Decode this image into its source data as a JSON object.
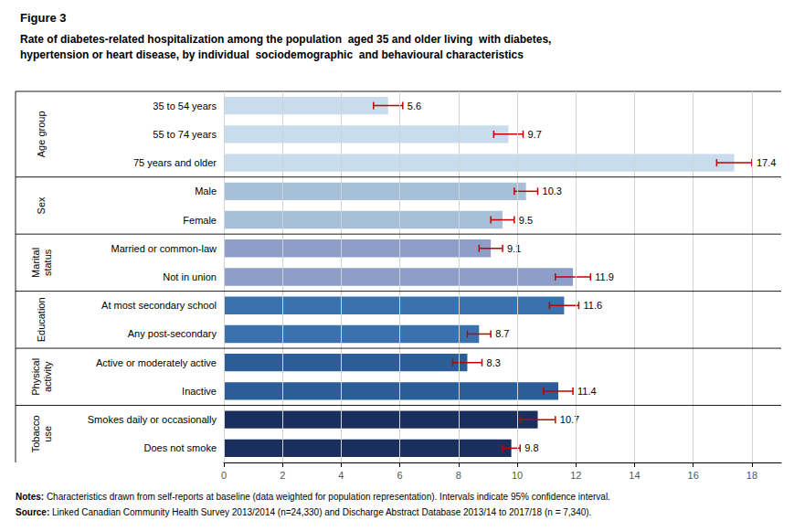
{
  "chart_data": {
    "type": "bar",
    "orientation": "horizontal",
    "title": "Figure 3",
    "subtitle": [
      "Rate of diabetes-related hospitalization among the population  aged 35 and older living  with diabetes,",
      "hypertension or heart disease, by individual  sociodemographic  and behavioural characteristics"
    ],
    "categories": [
      "35 to 54 years",
      "55 to 74 years",
      "75 years and older",
      "Male",
      "Female",
      "Married or common-law",
      "Not in union",
      "At most secondary school",
      "Any post-secondary",
      "Active or moderately active",
      "Inactive",
      "Smokes daily or occasionally",
      "Does not smoke"
    ],
    "values": [
      5.6,
      9.7,
      17.4,
      10.3,
      9.5,
      9.1,
      11.9,
      11.6,
      8.7,
      8.3,
      11.4,
      10.7,
      9.8
    ],
    "ci_lower": [
      0.5,
      0.5,
      0.6,
      0.4,
      0.4,
      0.4,
      0.6,
      0.5,
      0.4,
      0.5,
      0.5,
      0.6,
      0.3
    ],
    "ci_upper": [
      0.5,
      0.5,
      0.6,
      0.4,
      0.4,
      0.4,
      0.6,
      0.5,
      0.4,
      0.5,
      0.5,
      0.6,
      0.3
    ],
    "colors": [
      "#c9dced",
      "#c9dced",
      "#c9dced",
      "#a8bfda",
      "#a8bfda",
      "#8d9fc8",
      "#8d9fc8",
      "#3a72ae",
      "#3a72ae",
      "#2b5d99",
      "#2b5d99",
      "#1b2f5e",
      "#1b2f5e"
    ],
    "groups": [
      {
        "label": "Age group",
        "count": 3
      },
      {
        "label": "Sex",
        "count": 2
      },
      {
        "label": "Marital\nstatus",
        "count": 2
      },
      {
        "label": "Education",
        "count": 2
      },
      {
        "label": "Physical\nactivity",
        "count": 2
      },
      {
        "label": "Tobacco\nuse",
        "count": 2
      }
    ],
    "data_labels": true,
    "xlim": [
      0,
      19
    ],
    "xticks": [
      0,
      2,
      4,
      6,
      8,
      10,
      12,
      14,
      16,
      18
    ],
    "grid": true,
    "annotations": [
      "Notes: Characteristics drawn from self-reports at baseline (data weighted for population representation). Intervals indicate 95% confidence interval.",
      "Source: Linked Canadian Community Health Survey 2013/2014 (n=24,330) and Discharge Abstract Database 2013/14 to 2017/18 (n = 7,340)."
    ]
  }
}
